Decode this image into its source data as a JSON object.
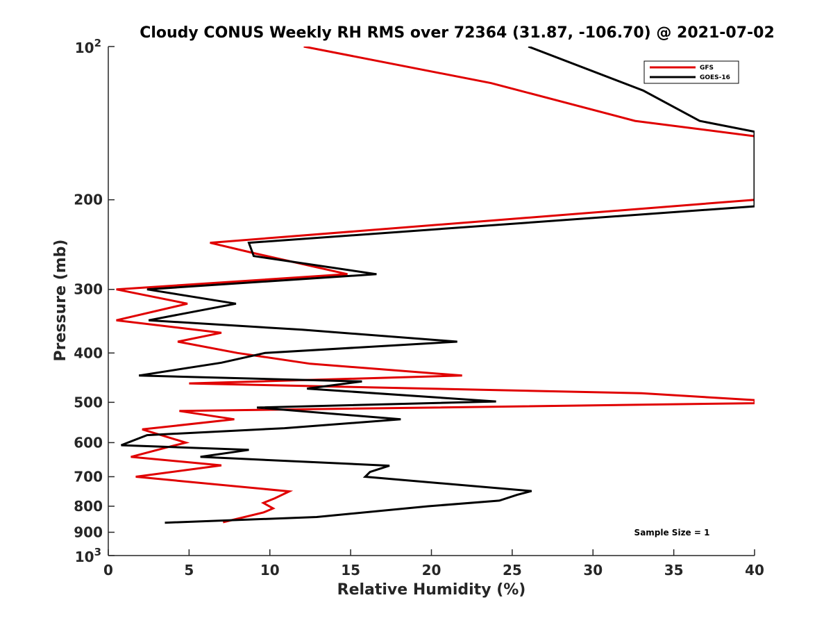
{
  "chart_data": {
    "type": "line",
    "title": "Cloudy CONUS Weekly RH RMS over 72364 (31.87, -106.70) @ 2021-07-02",
    "xlabel": "Relative Humidity (%)",
    "ylabel": "Pressure (mb)",
    "xlim": [
      0,
      40
    ],
    "ylim": [
      100,
      1000
    ],
    "y_scale": "log",
    "y_reversed": true,
    "x_ticks": [
      "0",
      "5",
      "10",
      "15",
      "20",
      "25",
      "30",
      "35",
      "40"
    ],
    "y_ticks": [
      {
        "value": 100,
        "base": "10",
        "exp": "2"
      },
      {
        "value": 200,
        "label": "200"
      },
      {
        "value": 300,
        "label": "300"
      },
      {
        "value": 400,
        "label": "400"
      },
      {
        "value": 500,
        "label": "500"
      },
      {
        "value": 600,
        "label": "600"
      },
      {
        "value": 700,
        "label": "700"
      },
      {
        "value": 800,
        "label": "800"
      },
      {
        "value": 900,
        "label": "900"
      },
      {
        "value": 1000,
        "base": "10",
        "exp": "3"
      }
    ],
    "legend_position": "top-right",
    "annotation": "Sample Size = 1",
    "series": [
      {
        "name": "GFS",
        "color": "#e00000",
        "points": [
          [
            12.1,
            100
          ],
          [
            23.7,
            118
          ],
          [
            32.6,
            140
          ],
          [
            40,
            150
          ],
          [
            40,
            200
          ],
          [
            6.3,
            243
          ],
          [
            9.1,
            255
          ],
          [
            14.8,
            280
          ],
          [
            0.5,
            300
          ],
          [
            4.9,
            320
          ],
          [
            0.5,
            345
          ],
          [
            7.0,
            365
          ],
          [
            4.3,
            380
          ],
          [
            8.0,
            400
          ],
          [
            12.5,
            420
          ],
          [
            21.9,
            443
          ],
          [
            5.0,
            459
          ],
          [
            33.0,
            480
          ],
          [
            40,
            495
          ],
          [
            40,
            502
          ],
          [
            4.4,
            520
          ],
          [
            7.8,
            540
          ],
          [
            2.1,
            565
          ],
          [
            4.8,
            600
          ],
          [
            3.9,
            610
          ],
          [
            1.4,
            640
          ],
          [
            7.0,
            665
          ],
          [
            1.7,
            700
          ],
          [
            11.2,
            748
          ],
          [
            10.3,
            772
          ],
          [
            9.6,
            788
          ],
          [
            10.2,
            808
          ],
          [
            9.6,
            823
          ],
          [
            7.1,
            860
          ]
        ]
      },
      {
        "name": "GOES-16",
        "color": "#000000",
        "points": [
          [
            26.0,
            100
          ],
          [
            33.1,
            122
          ],
          [
            36.6,
            140
          ],
          [
            40,
            147
          ],
          [
            40,
            206
          ],
          [
            8.7,
            243
          ],
          [
            9.0,
            258
          ],
          [
            16.6,
            280
          ],
          [
            2.4,
            300
          ],
          [
            7.9,
            320
          ],
          [
            2.5,
            345
          ],
          [
            12.0,
            360
          ],
          [
            21.6,
            380
          ],
          [
            9.7,
            400
          ],
          [
            7.0,
            418
          ],
          [
            1.9,
            443
          ],
          [
            15.7,
            455
          ],
          [
            12.3,
            470
          ],
          [
            24.0,
            498
          ],
          [
            9.2,
            512
          ],
          [
            18.1,
            540
          ],
          [
            10.9,
            562
          ],
          [
            2.4,
            580
          ],
          [
            0.8,
            607
          ],
          [
            8.7,
            620
          ],
          [
            5.7,
            640
          ],
          [
            17.4,
            666
          ],
          [
            16.2,
            685
          ],
          [
            15.9,
            700
          ],
          [
            26.2,
            747
          ],
          [
            25.3,
            760
          ],
          [
            24.2,
            780
          ],
          [
            19.8,
            800
          ],
          [
            12.9,
            840
          ],
          [
            3.5,
            862
          ]
        ]
      }
    ]
  }
}
